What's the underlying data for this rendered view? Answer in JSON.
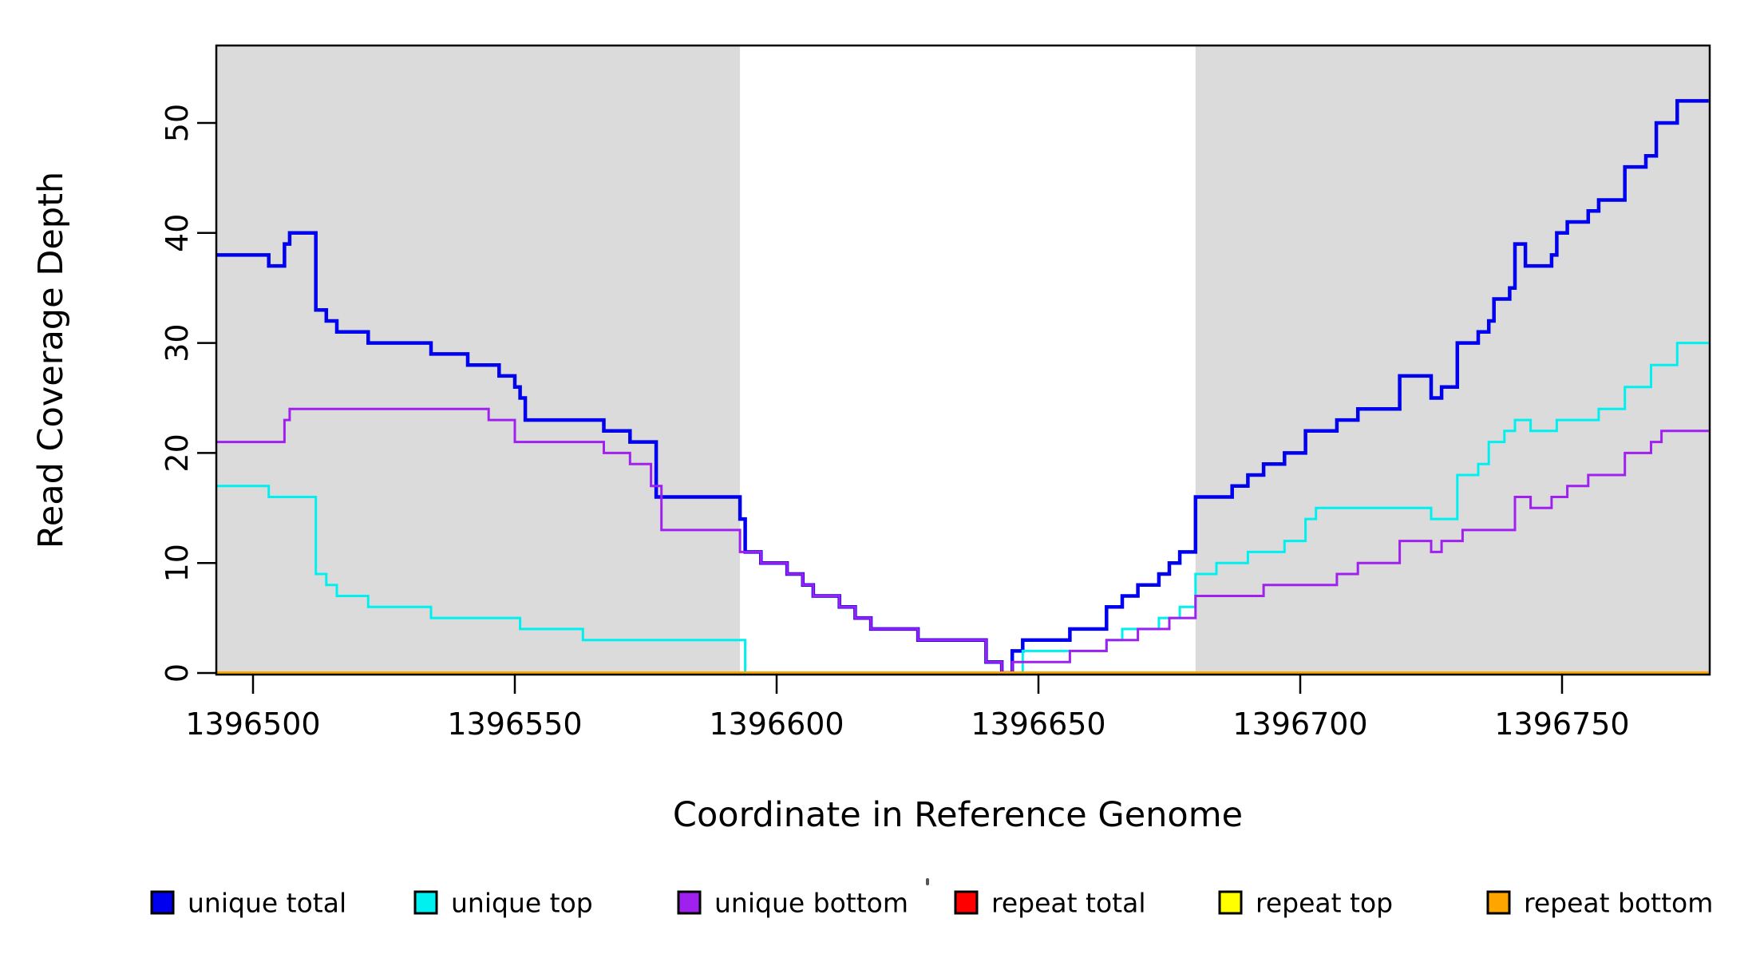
{
  "chart_data": {
    "type": "line",
    "subtype": "step",
    "title": "",
    "xlabel": "Coordinate in Reference Genome",
    "ylabel": "Read Coverage Depth",
    "x_range": [
      1396493,
      1396778
    ],
    "y_range": [
      0,
      57
    ],
    "grid": false,
    "legend_position": "bottom",
    "x_ticks": [
      1396500,
      1396550,
      1396600,
      1396650,
      1396700,
      1396750
    ],
    "y_ticks": [
      0,
      10,
      20,
      30,
      40,
      50
    ],
    "shaded_regions": [
      {
        "x0": 1396493,
        "x1": 1396593,
        "color": "#DBDBDB"
      },
      {
        "x0": 1396680,
        "x1": 1396778,
        "color": "#DBDBDB"
      }
    ],
    "series": [
      {
        "name": "unique total",
        "color": "#0000EE",
        "width": 4.5,
        "points": [
          [
            1396493,
            38
          ],
          [
            1396503,
            37
          ],
          [
            1396506,
            39
          ],
          [
            1396507,
            40
          ],
          [
            1396512,
            33
          ],
          [
            1396514,
            32
          ],
          [
            1396516,
            31
          ],
          [
            1396522,
            30
          ],
          [
            1396534,
            29
          ],
          [
            1396541,
            28
          ],
          [
            1396547,
            27
          ],
          [
            1396550,
            26
          ],
          [
            1396551,
            25
          ],
          [
            1396552,
            23
          ],
          [
            1396567,
            22
          ],
          [
            1396572,
            21
          ],
          [
            1396577,
            16
          ],
          [
            1396593,
            14
          ],
          [
            1396594,
            11
          ],
          [
            1396597,
            10
          ],
          [
            1396602,
            9
          ],
          [
            1396605,
            8
          ],
          [
            1396607,
            7
          ],
          [
            1396612,
            6
          ],
          [
            1396615,
            5
          ],
          [
            1396618,
            4
          ],
          [
            1396627,
            3
          ],
          [
            1396640,
            1
          ],
          [
            1396643,
            0
          ],
          [
            1396645,
            2
          ],
          [
            1396647,
            3
          ],
          [
            1396656,
            4
          ],
          [
            1396663,
            6
          ],
          [
            1396666,
            7
          ],
          [
            1396669,
            8
          ],
          [
            1396673,
            9
          ],
          [
            1396675,
            10
          ],
          [
            1396677,
            11
          ],
          [
            1396680,
            16
          ],
          [
            1396687,
            17
          ],
          [
            1396690,
            18
          ],
          [
            1396693,
            19
          ],
          [
            1396697,
            20
          ],
          [
            1396701,
            22
          ],
          [
            1396707,
            23
          ],
          [
            1396711,
            24
          ],
          [
            1396719,
            27
          ],
          [
            1396725,
            25
          ],
          [
            1396727,
            26
          ],
          [
            1396730,
            30
          ],
          [
            1396734,
            31
          ],
          [
            1396736,
            32
          ],
          [
            1396737,
            34
          ],
          [
            1396740,
            35
          ],
          [
            1396741,
            39
          ],
          [
            1396743,
            37
          ],
          [
            1396748,
            38
          ],
          [
            1396749,
            40
          ],
          [
            1396751,
            41
          ],
          [
            1396755,
            42
          ],
          [
            1396757,
            43
          ],
          [
            1396762,
            46
          ],
          [
            1396766,
            47
          ],
          [
            1396768,
            50
          ],
          [
            1396772,
            52
          ],
          [
            1396778,
            52
          ]
        ]
      },
      {
        "name": "unique top",
        "color": "#00F0F0",
        "width": 3,
        "points": [
          [
            1396493,
            17
          ],
          [
            1396503,
            16
          ],
          [
            1396512,
            9
          ],
          [
            1396514,
            8
          ],
          [
            1396516,
            7
          ],
          [
            1396522,
            6
          ],
          [
            1396534,
            5
          ],
          [
            1396551,
            4
          ],
          [
            1396563,
            3
          ],
          [
            1396594,
            0
          ],
          [
            1396647,
            2
          ],
          [
            1396663,
            3
          ],
          [
            1396666,
            4
          ],
          [
            1396673,
            5
          ],
          [
            1396677,
            6
          ],
          [
            1396680,
            9
          ],
          [
            1396684,
            10
          ],
          [
            1396690,
            11
          ],
          [
            1396697,
            12
          ],
          [
            1396701,
            14
          ],
          [
            1396703,
            15
          ],
          [
            1396725,
            14
          ],
          [
            1396730,
            18
          ],
          [
            1396734,
            19
          ],
          [
            1396736,
            21
          ],
          [
            1396739,
            22
          ],
          [
            1396741,
            23
          ],
          [
            1396744,
            22
          ],
          [
            1396749,
            23
          ],
          [
            1396757,
            24
          ],
          [
            1396762,
            26
          ],
          [
            1396767,
            28
          ],
          [
            1396772,
            30
          ],
          [
            1396778,
            30
          ]
        ]
      },
      {
        "name": "unique bottom",
        "color": "#A020F0",
        "width": 3,
        "points": [
          [
            1396493,
            21
          ],
          [
            1396506,
            23
          ],
          [
            1396507,
            24
          ],
          [
            1396545,
            23
          ],
          [
            1396550,
            21
          ],
          [
            1396567,
            20
          ],
          [
            1396572,
            19
          ],
          [
            1396576,
            17
          ],
          [
            1396578,
            13
          ],
          [
            1396593,
            11
          ],
          [
            1396597,
            10
          ],
          [
            1396602,
            9
          ],
          [
            1396605,
            8
          ],
          [
            1396607,
            7
          ],
          [
            1396612,
            6
          ],
          [
            1396615,
            5
          ],
          [
            1396618,
            4
          ],
          [
            1396627,
            3
          ],
          [
            1396640,
            1
          ],
          [
            1396643,
            0
          ],
          [
            1396645,
            1
          ],
          [
            1396656,
            2
          ],
          [
            1396663,
            3
          ],
          [
            1396669,
            4
          ],
          [
            1396675,
            5
          ],
          [
            1396680,
            7
          ],
          [
            1396693,
            8
          ],
          [
            1396707,
            9
          ],
          [
            1396711,
            10
          ],
          [
            1396719,
            12
          ],
          [
            1396725,
            11
          ],
          [
            1396727,
            12
          ],
          [
            1396731,
            13
          ],
          [
            1396741,
            16
          ],
          [
            1396744,
            15
          ],
          [
            1396748,
            16
          ],
          [
            1396751,
            17
          ],
          [
            1396755,
            18
          ],
          [
            1396762,
            20
          ],
          [
            1396767,
            21
          ],
          [
            1396769,
            22
          ],
          [
            1396778,
            22
          ]
        ]
      },
      {
        "name": "repeat total",
        "color": "#FF0000",
        "width": 3,
        "points": [
          [
            1396493,
            0
          ],
          [
            1396778,
            0
          ]
        ]
      },
      {
        "name": "repeat top",
        "color": "#FFFF00",
        "width": 3,
        "points": [
          [
            1396493,
            0
          ],
          [
            1396778,
            0
          ]
        ]
      },
      {
        "name": "repeat bottom",
        "color": "#FFA500",
        "width": 4,
        "points": [
          [
            1396493,
            0
          ],
          [
            1396778,
            0
          ]
        ]
      }
    ],
    "legend": [
      {
        "label": "unique total",
        "color": "#0000EE"
      },
      {
        "label": "unique top",
        "color": "#00F0F0"
      },
      {
        "label": "unique bottom",
        "color": "#A020F0"
      },
      {
        "label": "repeat total",
        "color": "#FF0000"
      },
      {
        "label": "repeat top",
        "color": "#FFFF00"
      },
      {
        "label": "repeat bottom",
        "color": "#FFA500"
      }
    ]
  },
  "axes_text": {
    "x_title": "Coordinate in Reference Genome",
    "y_title": "Read Coverage Depth"
  },
  "layout_colors": {
    "background": "#FFFFFF",
    "box_stroke": "#000000",
    "shade": "#DBDBDB"
  }
}
